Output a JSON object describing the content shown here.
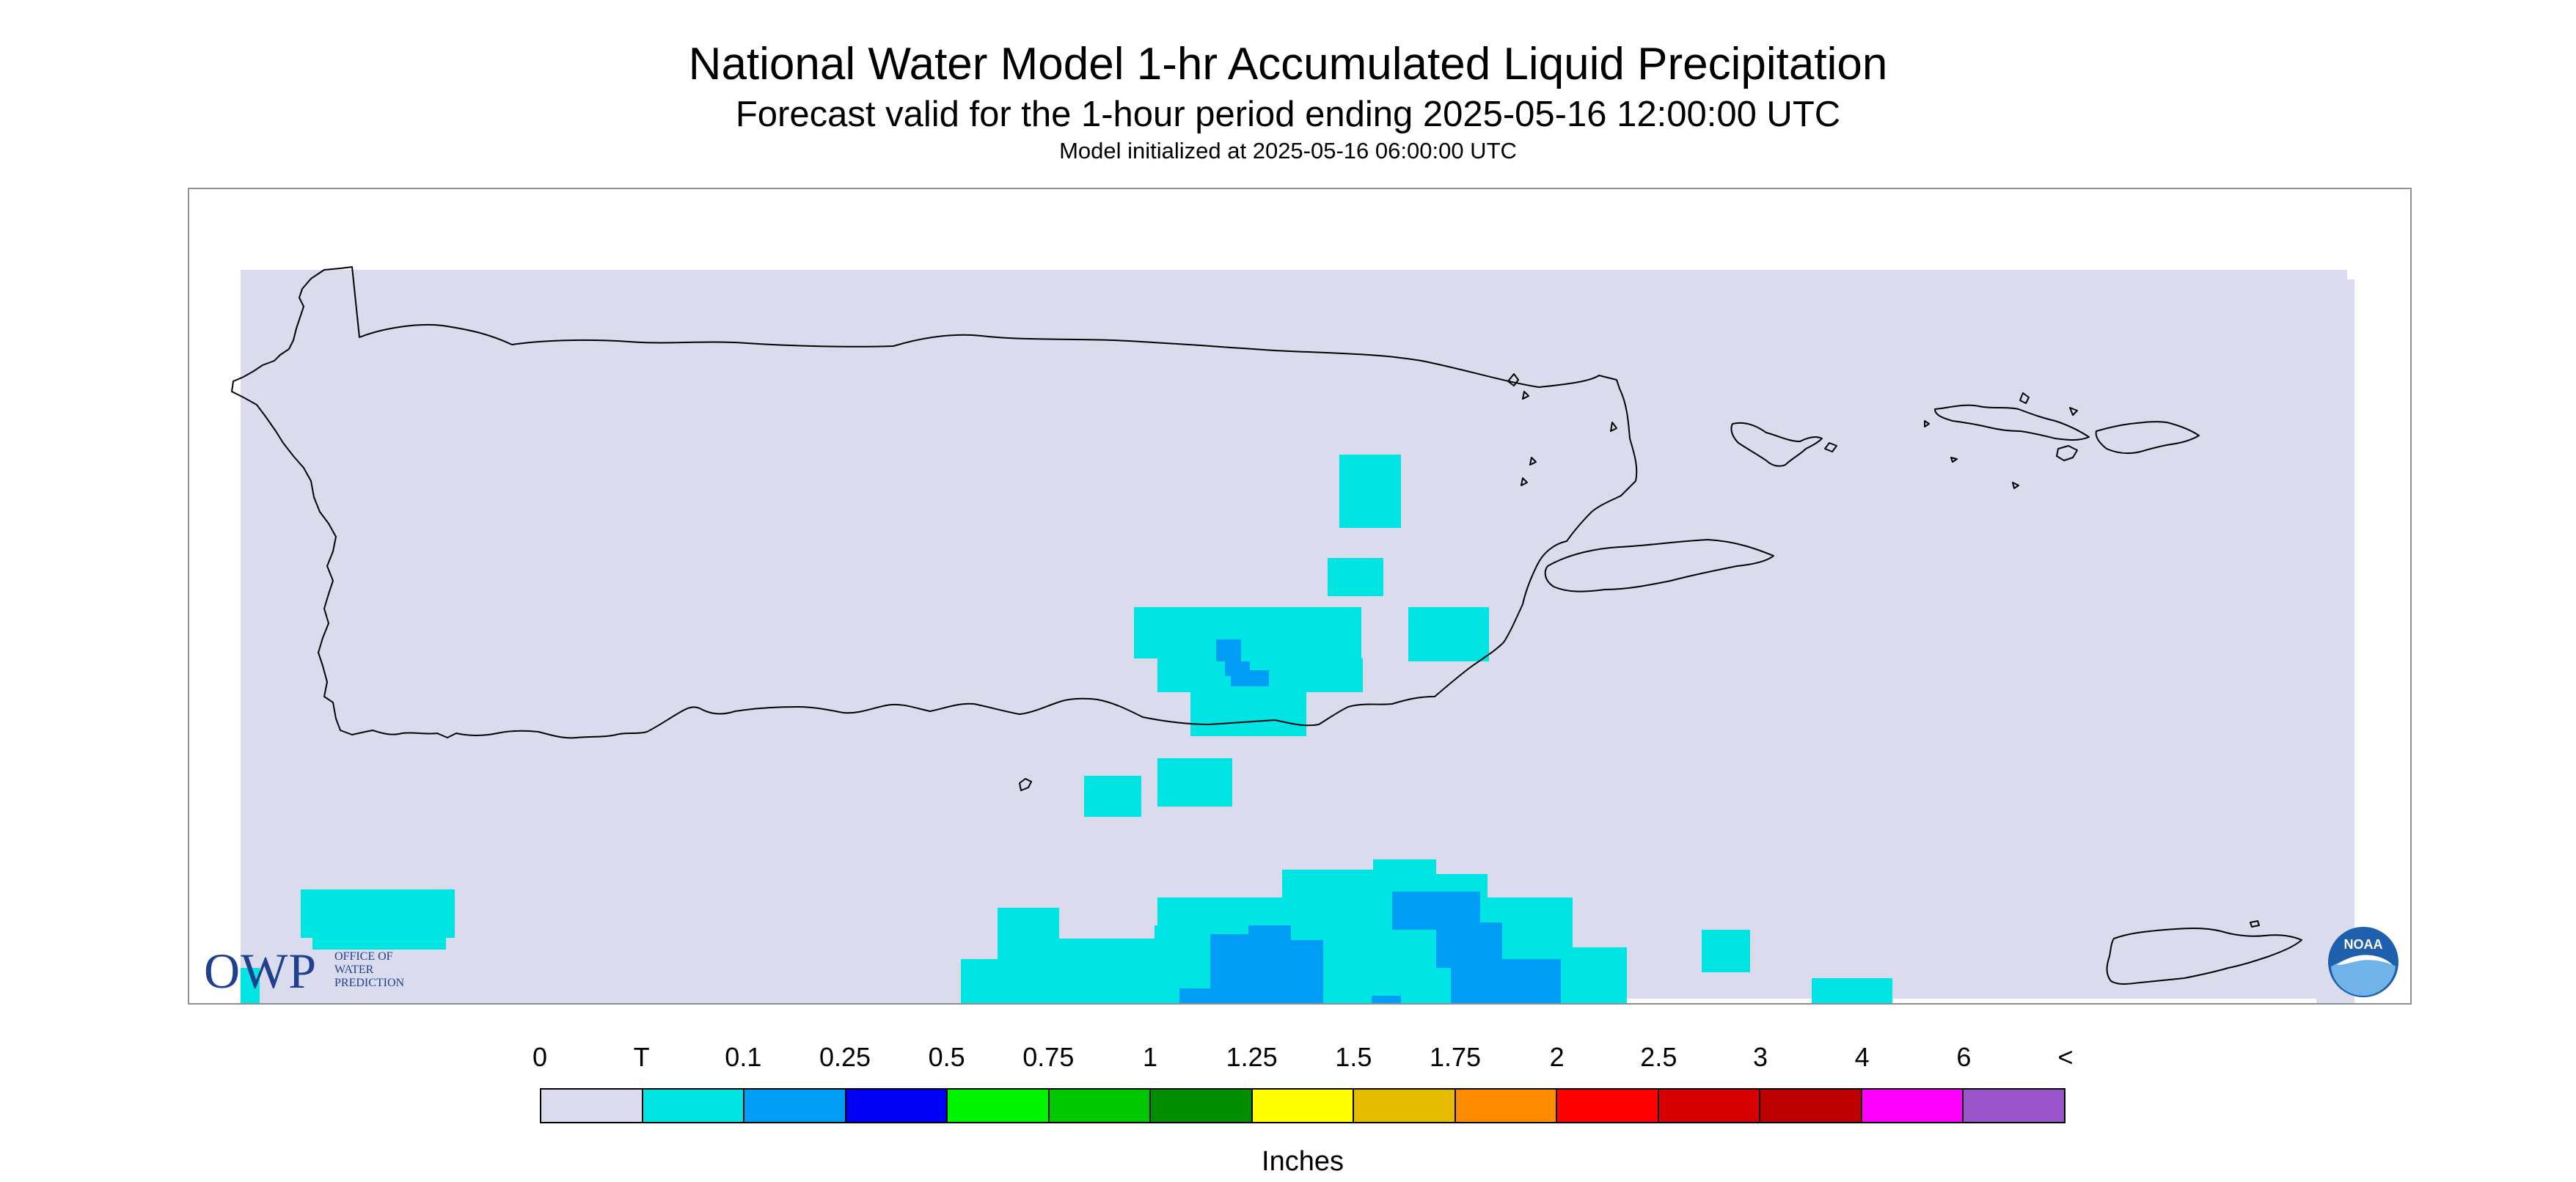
{
  "titles": {
    "main": "National Water Model 1-hr Accumulated Liquid Precipitation",
    "sub": "Forecast valid for the 1-hour period ending 2025-05-16 12:00:00 UTC",
    "init": "Model initialized at 2025-05-16 06:00:00 UTC"
  },
  "map": {
    "background_color": "#dadcee",
    "coastline_color": "#000000"
  },
  "legend": {
    "units": "Inches",
    "tick_labels": [
      "0",
      "T",
      "0.1",
      "0.25",
      "0.5",
      "0.75",
      "1",
      "1.25",
      "1.5",
      "1.75",
      "2",
      "2.5",
      "3",
      "4",
      "6",
      "<"
    ],
    "colors": [
      "#dadcee",
      "#00e4e4",
      "#009df4",
      "#0000f4",
      "#00f400",
      "#00c800",
      "#008e00",
      "#ffff00",
      "#e5bb00",
      "#ff8c00",
      "#ff0000",
      "#d60000",
      "#bd0000",
      "#ff00ff",
      "#9955c9"
    ]
  },
  "logos": {
    "owp": {
      "letters": "OWP",
      "words": [
        "OFFICE OF",
        "WATER",
        "PREDICTION"
      ],
      "color": "#1f3f8f"
    },
    "noaa": {
      "text": "NOAA",
      "color": "#1e5fae"
    }
  }
}
